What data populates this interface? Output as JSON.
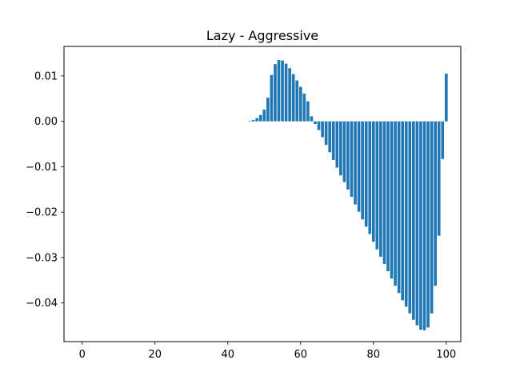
{
  "chart_data": {
    "type": "bar",
    "title": "Lazy - Aggressive",
    "xlabel": "",
    "ylabel": "",
    "bar_color": "#1f77b4",
    "xlim": [
      -5,
      104
    ],
    "ylim": [
      -0.0485,
      0.0165
    ],
    "xticks": [
      0,
      20,
      40,
      60,
      80,
      100
    ],
    "yticks": [
      0.01,
      0.0,
      -0.01,
      -0.02,
      -0.03,
      -0.04
    ],
    "xtick_labels": [
      "0",
      "20",
      "40",
      "60",
      "80",
      "100"
    ],
    "ytick_labels": [
      "0.01",
      "0.00",
      "−0.01",
      "−0.02",
      "−0.03",
      "−0.04"
    ],
    "bar_width": 0.8,
    "x_start": 0,
    "values": [
      0,
      0,
      0,
      0,
      0,
      0,
      0,
      0,
      0,
      0,
      0,
      0,
      0,
      0,
      0,
      0,
      0,
      0,
      0,
      0,
      0,
      0,
      0,
      0,
      0,
      0,
      0,
      0,
      0,
      0,
      0,
      0,
      0,
      0,
      0,
      0,
      0,
      0,
      0,
      0,
      0,
      0,
      0,
      0,
      0,
      0,
      0.0001,
      0.0003,
      0.0007,
      0.0014,
      0.0026,
      0.0052,
      0.0102,
      0.0126,
      0.0135,
      0.0134,
      0.0127,
      0.0117,
      0.0104,
      0.009,
      0.0076,
      0.0061,
      0.0044,
      0.0011,
      -0.0006,
      -0.0019,
      -0.0035,
      -0.0052,
      -0.0068,
      -0.0085,
      -0.0102,
      -0.0119,
      -0.0134,
      -0.015,
      -0.0166,
      -0.0183,
      -0.0199,
      -0.0216,
      -0.0232,
      -0.0248,
      -0.0265,
      -0.0282,
      -0.0298,
      -0.0314,
      -0.033,
      -0.0346,
      -0.0362,
      -0.0378,
      -0.0394,
      -0.0408,
      -0.0423,
      -0.0437,
      -0.0449,
      -0.0459,
      -0.046,
      -0.0454,
      -0.0423,
      -0.0362,
      -0.0252,
      -0.0083,
      0.0105
    ]
  }
}
